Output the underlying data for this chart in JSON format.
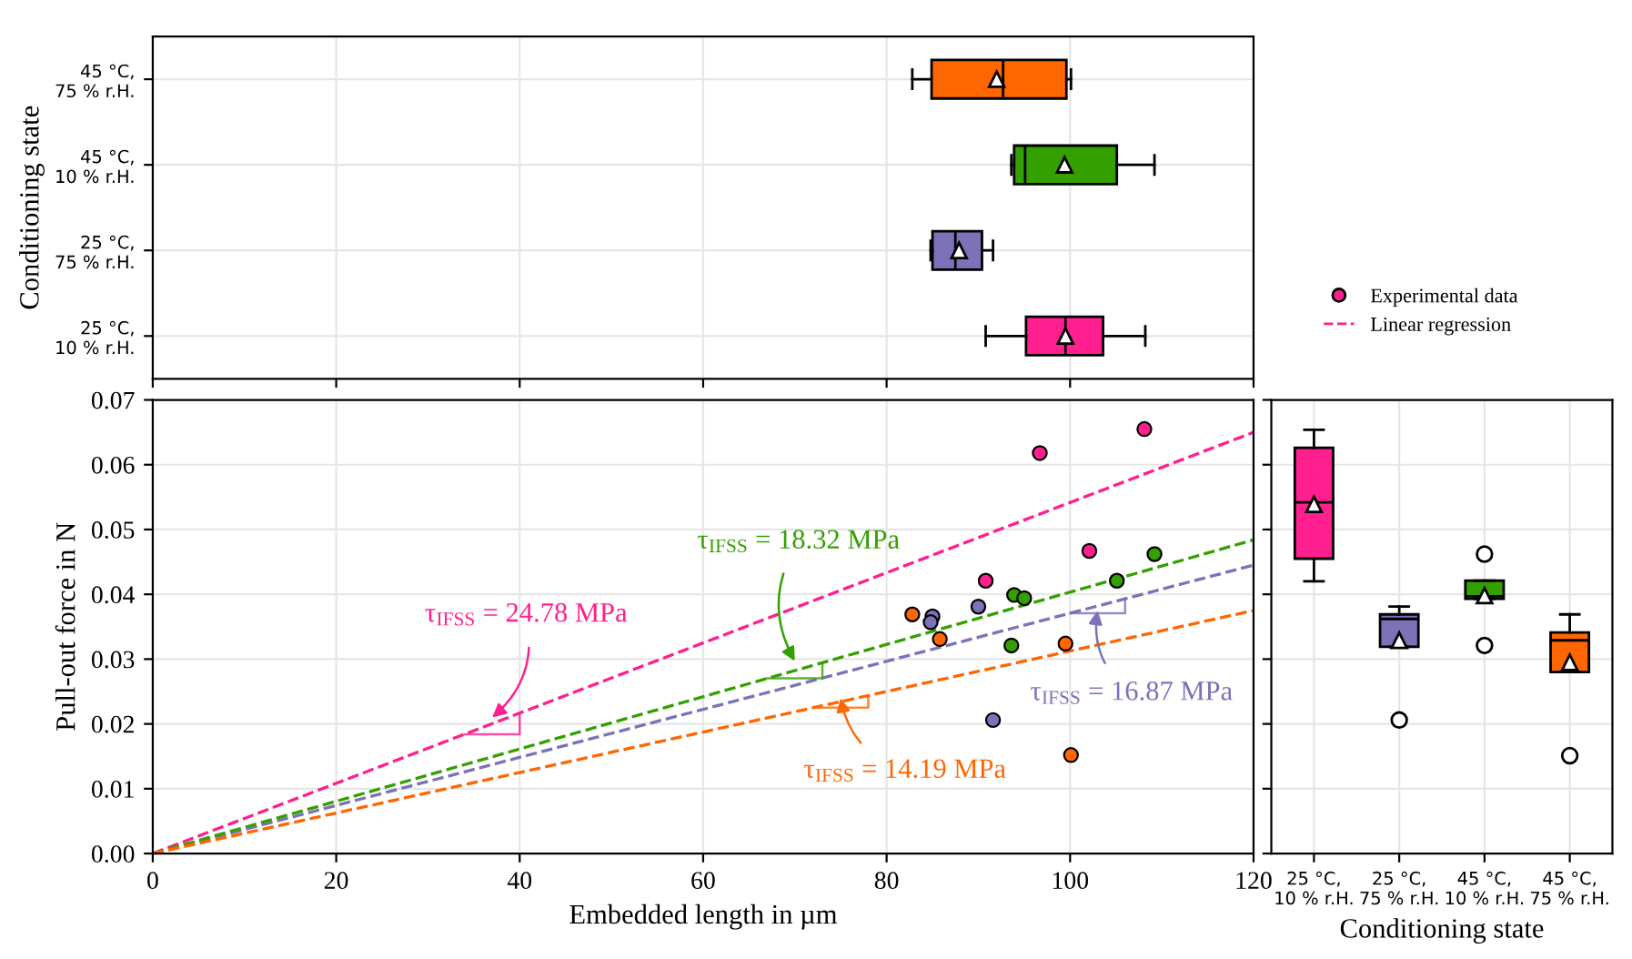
{
  "chart_data": [
    {
      "type": "box",
      "orientation": "horizontal",
      "ylabel": "Conditioning state",
      "categories": [
        "45 °C,\n75 % r.H.",
        "45 °C,\n10 % r.H.",
        "25 °C,\n75 % r.H.",
        "25 °C,\n10 % r.H."
      ],
      "colors": [
        "#ff6600",
        "#33a000",
        "#7b72b8",
        "#ff1f8e"
      ],
      "boxes": [
        {
          "low": 82.8,
          "q1": 84.9,
          "median": 92.7,
          "q3": 99.6,
          "high": 100.1,
          "mean": 92.0
        },
        {
          "low": 93.6,
          "q1": 93.9,
          "median": 95.1,
          "q3": 105.1,
          "high": 109.2,
          "mean": 99.4
        },
        {
          "low": 84.8,
          "q1": 85.0,
          "median": 87.5,
          "q3": 90.4,
          "high": 91.6,
          "mean": 87.9
        },
        {
          "low": 90.8,
          "q1": 95.2,
          "median": 99.5,
          "q3": 103.6,
          "high": 108.2,
          "mean": 99.5
        }
      ],
      "xlim": [
        0,
        120
      ],
      "xticks": [
        0,
        20,
        40,
        60,
        80,
        100,
        120
      ],
      "tick_labels": "y",
      "grid": true
    },
    {
      "type": "scatter",
      "xlabel": "Embedded length in µm",
      "ylabel": "Pull-out force in N",
      "xlim": [
        0,
        120
      ],
      "ylim": [
        0,
        0.07
      ],
      "xticks": [
        0,
        20,
        40,
        60,
        80,
        100,
        120
      ],
      "yticks": [
        {
          "value": 0,
          "label": "0.00"
        },
        {
          "value": 0.01,
          "label": "0.01"
        },
        {
          "value": 0.02,
          "label": "0.02"
        },
        {
          "value": 0.03,
          "label": "0.03"
        },
        {
          "value": 0.04,
          "label": "0.04"
        },
        {
          "value": 0.05,
          "label": "0.05"
        },
        {
          "value": 0.06,
          "label": "0.06"
        },
        {
          "value": 0.07,
          "label": "0.07"
        }
      ],
      "grid": true,
      "legend": "right",
      "series": [
        {
          "type": "scatter",
          "name": "Experimental data",
          "marker": "circle",
          "color": "#ff1f8e",
          "x": [
            108.1,
            96.7,
            102.1,
            90.8
          ],
          "values": [
            0.0655,
            0.0618,
            0.0467,
            0.0421
          ]
        },
        {
          "type": "scatter",
          "marker": "circle",
          "color": "#7b72b8",
          "x": [
            90.0,
            85.0,
            84.8,
            91.6
          ],
          "values": [
            0.0381,
            0.0366,
            0.0357,
            0.0206
          ]
        },
        {
          "type": "scatter",
          "marker": "circle",
          "color": "#33a000",
          "x": [
            109.2,
            105.1,
            93.9,
            95.0,
            93.6
          ],
          "values": [
            0.0462,
            0.0421,
            0.0399,
            0.0394,
            0.0321
          ]
        },
        {
          "type": "scatter",
          "marker": "circle",
          "color": "#ff6600",
          "x": [
            82.8,
            85.8,
            99.5,
            100.1
          ],
          "values": [
            0.0369,
            0.0331,
            0.0324,
            0.0152
          ]
        },
        {
          "type": "line",
          "name": "Linear regression",
          "line_style": "dashed",
          "color": "#ff1f8e",
          "x": [
            0,
            120
          ],
          "values": [
            0,
            0.065
          ]
        },
        {
          "type": "line",
          "line_style": "dashed",
          "color": "#7b72b8",
          "x": [
            0,
            120
          ],
          "values": [
            0,
            0.0445
          ]
        },
        {
          "type": "line",
          "line_style": "dashed",
          "color": "#33a000",
          "x": [
            0,
            120
          ],
          "values": [
            0,
            0.0484
          ]
        },
        {
          "type": "line",
          "line_style": "dashed",
          "color": "#ff6600",
          "x": [
            0,
            120
          ],
          "values": [
            0,
            0.0375
          ]
        }
      ],
      "annotations": [
        {
          "text": "τ$_{IFSS}$ = 24.78 MPa",
          "x": 37,
          "y": 0.021
        },
        {
          "text": "τ$_{IFSS}$ = 16.87 MPa",
          "x": 103,
          "y": 0.0375
        },
        {
          "text": "τ$_{IFSS}$ = 18.32 MPa",
          "x": 70,
          "y": 0.0297
        },
        {
          "text": "τ$_{IFSS}$ = 14.19 MPa",
          "x": 75,
          "y": 0.024
        }
      ]
    },
    {
      "type": "box",
      "xlabel": "Conditioning state",
      "categories": [
        "25 °C,\n10 % r.H.",
        "25 °C,\n75 % r.H.",
        "45 °C,\n10 % r.H.",
        "45 °C,\n75 % r.H."
      ],
      "colors": [
        "#ff1f8e",
        "#7b72b8",
        "#33a000",
        "#ff6600"
      ],
      "boxes": [
        {
          "low": 0.042,
          "q1": 0.0455,
          "median": 0.0542,
          "q3": 0.0626,
          "high": 0.0654,
          "mean": 0.0539
        },
        {
          "low": 0.0319,
          "q1": 0.0319,
          "median": 0.0362,
          "q3": 0.0369,
          "high": 0.0381,
          "mean": 0.0329,
          "outliers": [
            0.0206
          ]
        },
        {
          "low": 0.0393,
          "q1": 0.0393,
          "median": 0.0397,
          "q3": 0.0421,
          "high": 0.0421,
          "mean": 0.0398,
          "outliers": [
            0.0462,
            0.0321
          ]
        },
        {
          "low": 0.028,
          "q1": 0.028,
          "median": 0.0329,
          "q3": 0.0341,
          "high": 0.0369,
          "mean": 0.0295,
          "outliers": [
            0.0151
          ]
        }
      ],
      "ylim": [
        0,
        0.07
      ],
      "yticks": [
        0,
        0.01,
        0.02,
        0.03,
        0.04,
        0.05,
        0.06,
        0.07
      ],
      "tick_labels": "x",
      "grid": true
    }
  ]
}
